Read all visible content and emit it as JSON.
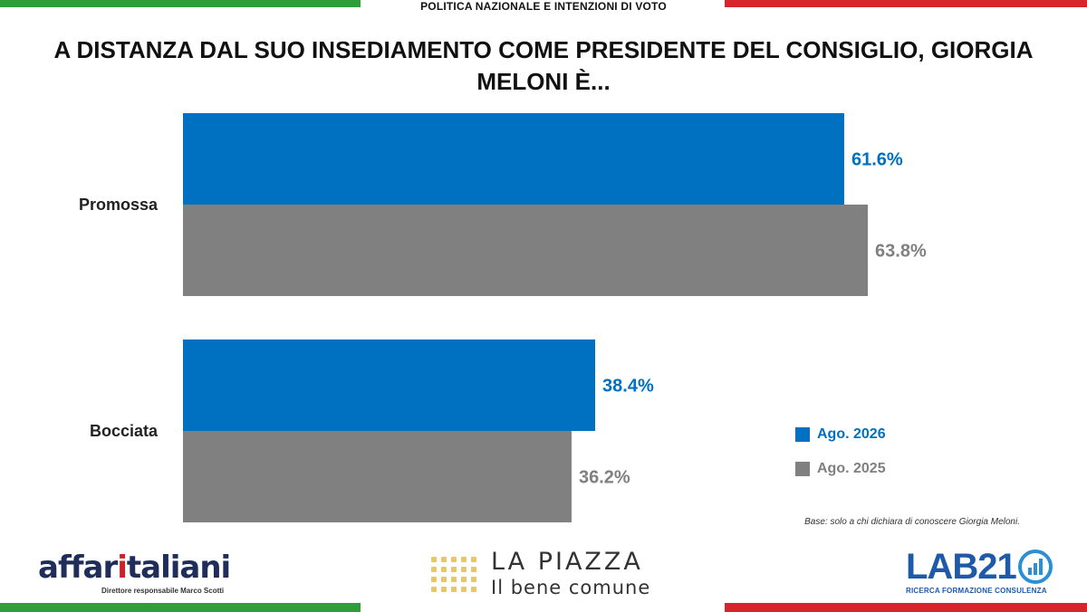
{
  "header": {
    "section": "POLITICA NAZIONALE E INTENZIONI DI VOTO",
    "title": "A DISTANZA DAL SUO INSEDIAMENTO COME PRESIDENTE DEL CONSIGLIO, GIORGIA MELONI È..."
  },
  "colors": {
    "blue": "#0070c0",
    "gray": "#808080"
  },
  "chart_data": {
    "type": "bar",
    "orientation": "horizontal",
    "categories": [
      "Promossa",
      "Bocciata"
    ],
    "series": [
      {
        "name": "Ago. 2026",
        "values": [
          61.6,
          38.4
        ],
        "labels": [
          "61.6%",
          "38.4%"
        ],
        "color": "#0070c0"
      },
      {
        "name": "Ago. 2025",
        "values": [
          63.8,
          36.2
        ],
        "labels": [
          "63.8%",
          "36.2%"
        ],
        "color": "#808080"
      }
    ],
    "xlim": [
      0,
      100
    ],
    "grid": false,
    "legend": "right"
  },
  "note": "Base: solo a chi dichiara di conoscere Giorgia Meloni.",
  "logos": {
    "affari_pre": "affar",
    "affari_i": "i",
    "affari_post": "taliani",
    "affari_sub": "Direttore responsabile Marco Scotti",
    "piazza_main": "LA PIAZZA",
    "piazza_sub": "Il bene comune",
    "lab_main": "LAB21",
    "lab_sub": "RICERCA FORMAZIONE CONSULENZA"
  }
}
